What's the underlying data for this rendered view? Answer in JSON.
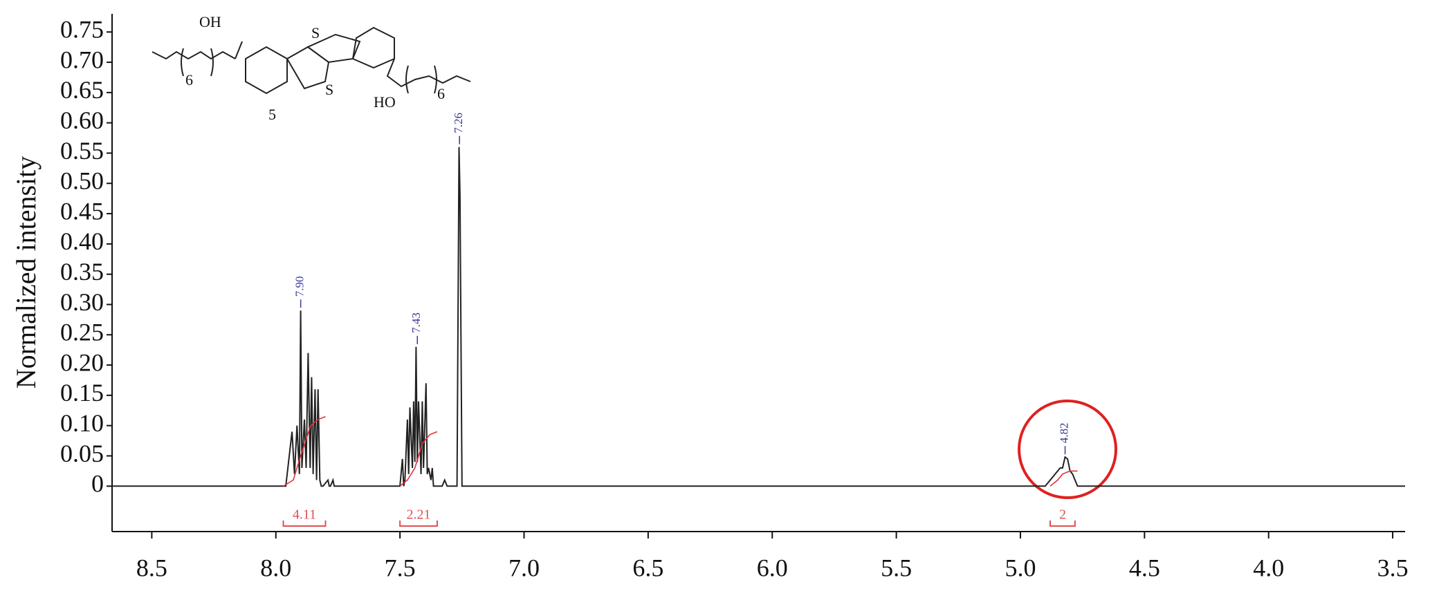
{
  "chart_data": {
    "type": "line",
    "y_label": "Normalized intensity",
    "xlim": [
      8.66,
      3.45
    ],
    "ylim": [
      -0.075,
      0.78
    ],
    "xticks": [
      8.5,
      {
        "value": 8,
        "label": "8.0"
      },
      7.5,
      {
        "value": 7,
        "label": "7.0"
      },
      6.5,
      {
        "value": 6,
        "label": "6.0"
      },
      5.5,
      {
        "value": 5,
        "label": "5.0"
      },
      4.5,
      {
        "value": 4,
        "label": "4.0"
      },
      3.5
    ],
    "yticks": [
      0,
      0.05,
      {
        "value": 0.1,
        "label": "0.10"
      },
      0.15,
      {
        "value": 0.2,
        "label": "0.20"
      },
      0.25,
      {
        "value": 0.3,
        "label": "0.30"
      },
      0.35,
      {
        "value": 0.4,
        "label": "0.40"
      },
      0.45,
      {
        "value": 0.5,
        "label": "0.50"
      },
      0.55,
      {
        "value": 0.6,
        "label": "0.60"
      },
      0.65,
      {
        "value": 0.7,
        "label": "0.70"
      },
      0.75
    ],
    "series": [
      {
        "color": "#222222",
        "x": [
          8.66,
          7.96,
          7.935,
          7.925,
          7.915,
          7.905,
          7.9,
          7.895,
          7.885,
          7.878,
          7.87,
          7.862,
          7.856,
          7.85,
          7.842,
          7.836,
          7.83,
          7.823,
          7.817,
          7.81,
          7.79,
          7.785,
          7.78,
          7.77,
          7.765,
          7.76,
          7.5,
          7.49,
          7.485,
          7.48,
          7.47,
          7.465,
          7.46,
          7.45,
          7.445,
          7.44,
          7.435,
          7.43,
          7.425,
          7.415,
          7.41,
          7.405,
          7.395,
          7.39,
          7.385,
          7.375,
          7.37,
          7.365,
          7.33,
          7.32,
          7.31,
          7.27,
          7.262,
          7.258,
          7.25,
          4.9,
          4.86,
          4.85,
          4.84,
          4.83,
          4.82,
          4.81,
          4.8,
          4.79,
          4.77,
          3.45
        ],
        "values": [
          0,
          0,
          0.09,
          0.02,
          0.1,
          0.02,
          0.29,
          0.03,
          0.11,
          0.03,
          0.22,
          0.03,
          0.18,
          0.02,
          0.16,
          0.01,
          0.16,
          0.01,
          0,
          0,
          0.01,
          0,
          0,
          0.01,
          0,
          0,
          0,
          0.045,
          0,
          0.01,
          0.11,
          0.02,
          0.13,
          0.03,
          0.14,
          0.04,
          0.23,
          0.04,
          0.14,
          0.02,
          0.14,
          0.03,
          0.17,
          0.02,
          0.03,
          0.01,
          0.03,
          0,
          0,
          0.01,
          0,
          0,
          0.56,
          0.48,
          0,
          0,
          0.02,
          0.025,
          0.03,
          0.03,
          0.048,
          0.045,
          0.025,
          0.02,
          0,
          0
        ]
      },
      {
        "color": "#e0303a",
        "x": [
          7.97,
          7.93,
          7.9,
          7.86,
          7.83,
          7.8
        ],
        "values": [
          0,
          0.01,
          0.05,
          0.1,
          0.11,
          0.115
        ]
      },
      {
        "color": "#e0303a",
        "x": [
          7.5,
          7.47,
          7.44,
          7.41,
          7.38,
          7.35
        ],
        "values": [
          0,
          0.01,
          0.03,
          0.07,
          0.085,
          0.09
        ]
      },
      {
        "color": "#e0303a",
        "x": [
          4.88,
          4.85,
          4.83,
          4.8,
          4.77
        ],
        "values": [
          0,
          0.01,
          0.02,
          0.025,
          0.025
        ]
      }
    ],
    "peak_labels": [
      {
        "x": 7.9,
        "y": 0.29,
        "label": "7.90"
      },
      {
        "x": 7.43,
        "y": 0.23,
        "label": "7.43"
      },
      {
        "x": 7.26,
        "y": 0.56,
        "label": "7.26"
      },
      {
        "x": 4.82,
        "y": 0.048,
        "label": "4.82"
      }
    ],
    "integrals": [
      {
        "from": 7.97,
        "to": 7.8,
        "value": 4.11
      },
      {
        "from": 7.5,
        "to": 7.35,
        "value": 2.21
      },
      {
        "from": 4.88,
        "to": 4.78,
        "value": 2
      }
    ],
    "annotations": [
      "OH",
      "S",
      "S",
      "HO",
      "6",
      "6",
      "5"
    ]
  }
}
